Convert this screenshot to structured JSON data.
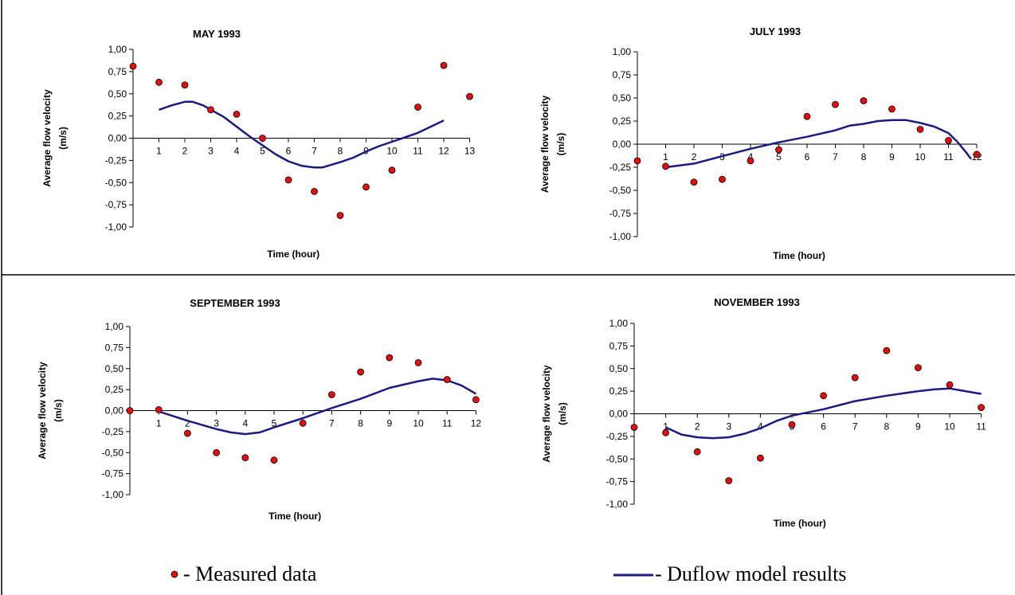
{
  "legend": {
    "measured_label": "- Measured data",
    "model_label": "- Duflow model results"
  },
  "colors": {
    "measured_fill": "#e01010",
    "model_line": "#1a1a80",
    "axis": "#000000"
  },
  "chart_data": [
    {
      "type": "line",
      "title": "MAY 1993",
      "xlabel": "Time (hour)",
      "ylabel": "Average flow velocity (m/s)",
      "ylim": [
        -1.0,
        1.0
      ],
      "yticks": [
        "1,00",
        "0,75",
        "0,50",
        "0,25",
        "0,00",
        "-0,25",
        "-0,50",
        "-0,75",
        "-1,00"
      ],
      "xlim": [
        0,
        13
      ],
      "xticks": [
        "1",
        "2",
        "3",
        "4",
        "5",
        "6",
        "7",
        "8",
        "9",
        "10",
        "11",
        "12",
        "13"
      ],
      "series": [
        {
          "name": "Measured data",
          "type": "scatter",
          "x": [
            0,
            1,
            2,
            3,
            4,
            5,
            6,
            7,
            8,
            9,
            10,
            11,
            12,
            13
          ],
          "y": [
            0.81,
            0.63,
            0.6,
            0.32,
            0.27,
            0.0,
            -0.47,
            -0.6,
            -0.87,
            -0.55,
            -0.36,
            0.35,
            0.82,
            0.47
          ]
        },
        {
          "name": "Duflow model results",
          "type": "line",
          "x": [
            1,
            1.5,
            2,
            2.3,
            2.7,
            3,
            3.5,
            4,
            4.5,
            5,
            5.5,
            6,
            6.5,
            7,
            7.3,
            8,
            8.5,
            9,
            9.5,
            10,
            10.5,
            11,
            11.5,
            12
          ],
          "y": [
            0.32,
            0.37,
            0.41,
            0.41,
            0.37,
            0.32,
            0.24,
            0.13,
            0.02,
            -0.08,
            -0.18,
            -0.26,
            -0.31,
            -0.33,
            -0.33,
            -0.27,
            -0.22,
            -0.15,
            -0.09,
            -0.04,
            0.01,
            0.06,
            0.13,
            0.2
          ]
        }
      ]
    },
    {
      "type": "line",
      "title": "JULY 1993",
      "xlabel": "Time (hour)",
      "ylabel": "Average flow velocity (m/s)",
      "ylim": [
        -1.0,
        1.0
      ],
      "yticks": [
        "1,00",
        "0,75",
        "0,50",
        "0,25",
        "0,00",
        "-0,25",
        "-0,50",
        "-0,75",
        "-1,00"
      ],
      "xlim": [
        0,
        12
      ],
      "xticks": [
        "1",
        "2",
        "3",
        "4",
        "5",
        "6",
        "7",
        "8",
        "9",
        "10",
        "11",
        "12"
      ],
      "series": [
        {
          "name": "Measured data",
          "type": "scatter",
          "x": [
            0,
            1,
            2,
            3,
            4,
            5,
            6,
            7,
            8,
            9,
            10,
            11,
            12
          ],
          "y": [
            -0.18,
            -0.24,
            -0.41,
            -0.38,
            -0.18,
            -0.06,
            0.3,
            0.43,
            0.47,
            0.38,
            0.16,
            0.04,
            -0.11
          ]
        },
        {
          "name": "Duflow model results",
          "type": "line",
          "x": [
            1,
            2,
            3,
            4,
            5,
            6,
            7,
            7.5,
            8,
            8.5,
            9,
            9.5,
            10,
            10.5,
            11,
            11.3,
            11.6,
            11.8
          ],
          "y": [
            -0.25,
            -0.21,
            -0.13,
            -0.05,
            0.02,
            0.08,
            0.15,
            0.2,
            0.22,
            0.25,
            0.26,
            0.26,
            0.23,
            0.19,
            0.12,
            0.03,
            -0.08,
            -0.16
          ]
        }
      ]
    },
    {
      "type": "line",
      "title": "SEPTEMBER 1993",
      "xlabel": "Time (hour)",
      "ylabel": "Average flow velocity (m/s)",
      "ylim": [
        -1.0,
        1.0
      ],
      "yticks": [
        "1,00",
        "0,75",
        "0,50",
        "0,25",
        "0,00",
        "-0,25",
        "-0,50",
        "-0,75",
        "-1,00"
      ],
      "xlim": [
        0,
        12
      ],
      "xticks": [
        "1",
        "2",
        "3",
        "4",
        "5",
        "6",
        "7",
        "8",
        "9",
        "10",
        "11",
        "12"
      ],
      "series": [
        {
          "name": "Measured data",
          "type": "scatter",
          "x": [
            0,
            1,
            2,
            3,
            4,
            5,
            6,
            7,
            8,
            9,
            10,
            11,
            12
          ],
          "y": [
            0.0,
            0.01,
            -0.27,
            -0.5,
            -0.56,
            -0.59,
            -0.15,
            0.19,
            0.46,
            0.63,
            0.57,
            0.37,
            0.13
          ]
        },
        {
          "name": "Duflow model results",
          "type": "line",
          "x": [
            1,
            2,
            3,
            3.5,
            4,
            4.5,
            5,
            6,
            7,
            8,
            9,
            10,
            10.5,
            11,
            11.5,
            12
          ],
          "y": [
            -0.01,
            -0.12,
            -0.22,
            -0.26,
            -0.28,
            -0.26,
            -0.2,
            -0.09,
            0.03,
            0.14,
            0.27,
            0.35,
            0.38,
            0.36,
            0.3,
            0.2
          ]
        }
      ]
    },
    {
      "type": "line",
      "title": "NOVEMBER 1993",
      "xlabel": "Time (hour)",
      "ylabel": "Average flow velocity (m/s)",
      "ylim": [
        -1.0,
        1.0
      ],
      "yticks": [
        "1,00",
        "0,75",
        "0,50",
        "0,25",
        "0,00",
        "-0,25",
        "-0,50",
        "-0,75",
        "-1,00"
      ],
      "xlim": [
        0,
        11
      ],
      "xticks": [
        "1",
        "2",
        "3",
        "4",
        "5",
        "6",
        "7",
        "8",
        "9",
        "10",
        "11"
      ],
      "series": [
        {
          "name": "Measured data",
          "type": "scatter",
          "x": [
            0,
            1,
            2,
            3,
            4,
            5,
            6,
            7,
            8,
            9,
            10,
            11
          ],
          "y": [
            -0.15,
            -0.21,
            -0.42,
            -0.74,
            -0.49,
            -0.12,
            0.2,
            0.4,
            0.7,
            0.51,
            0.32,
            0.07
          ]
        },
        {
          "name": "Duflow model results",
          "type": "line",
          "x": [
            1,
            1.5,
            2,
            2.5,
            3,
            3.5,
            4,
            4.5,
            5,
            6,
            7,
            8,
            9,
            9.5,
            10,
            10.5,
            11
          ],
          "y": [
            -0.15,
            -0.23,
            -0.26,
            -0.27,
            -0.26,
            -0.22,
            -0.16,
            -0.08,
            -0.02,
            0.05,
            0.14,
            0.2,
            0.25,
            0.27,
            0.28,
            0.25,
            0.22
          ]
        }
      ]
    }
  ]
}
